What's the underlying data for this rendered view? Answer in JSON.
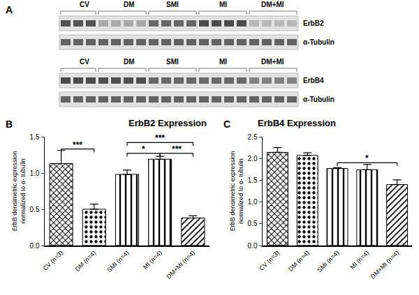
{
  "panel_a": {
    "label": "A",
    "groups": [
      "CV",
      "DM",
      "SMI",
      "MI",
      "DM+MI"
    ],
    "blots": [
      {
        "rows": [
          "ErbB2",
          "α-Tubulin"
        ]
      },
      {
        "rows": [
          "ErbB4",
          "α-Tubulin"
        ]
      }
    ]
  },
  "chart_data": [
    {
      "type": "bar",
      "panel_label": "B",
      "title": "ErbB2 Expression",
      "y_label": [
        "ErbB densimetric expression",
        "normalized to α- tubulin"
      ],
      "categories": [
        "CV (n=3)",
        "DM (n=4)",
        "SMI (n=4)",
        "MI (n=4)",
        "DM+MI (n=4)"
      ],
      "values": [
        1.13,
        0.5,
        0.98,
        1.19,
        0.38
      ],
      "errors": [
        0.18,
        0.07,
        0.06,
        0.04,
        0.03
      ],
      "color": "#ffffff",
      "ylim": [
        0,
        1.5
      ],
      "yticks": [
        {
          "value": 0,
          "label": "0.0"
        },
        0.5,
        {
          "value": 1,
          "label": "1.0"
        },
        1.5
      ],
      "grid": false,
      "significance": [
        {
          "from": "CV (n=3)",
          "to": "DM (n=4)",
          "label": "***",
          "y": 1.33
        },
        {
          "from": "SMI (n=4)",
          "to": "MI (n=4)",
          "label": "*",
          "y": 1.27
        },
        {
          "from": "MI (n=4)",
          "to": "DM+MI (n=4)",
          "label": "***",
          "y": 1.27
        },
        {
          "from": "SMI (n=4)",
          "to": "DM+MI (n=4)",
          "label": "***",
          "y": 1.42
        }
      ]
    },
    {
      "type": "bar",
      "panel_label": "C",
      "title": "ErbB4 Expression",
      "y_label": [
        "ErbB densimetric expression",
        "normalized to α- tubulin"
      ],
      "categories": [
        "CV (n=3)",
        "DM (n=4)",
        "SMI (n=4)",
        "MI (n=4)",
        "DM+MI (n=4)"
      ],
      "values": [
        2.14,
        2.07,
        1.77,
        1.74,
        1.4
      ],
      "errors": [
        0.11,
        0.06,
        0.02,
        0.12,
        0.11
      ],
      "color": "#ffffff",
      "ylim": [
        0,
        2.5
      ],
      "yticks": [
        {
          "value": 0,
          "label": "0.0"
        },
        0.5,
        {
          "value": 1,
          "label": "1.0"
        },
        1.5,
        {
          "value": 2,
          "label": "2.0"
        },
        2.5
      ],
      "grid": false,
      "significance": [
        {
          "from": "SMI (n=4)",
          "to": "DM+MI (n=4)",
          "label": "*",
          "y": 1.9
        }
      ]
    }
  ]
}
